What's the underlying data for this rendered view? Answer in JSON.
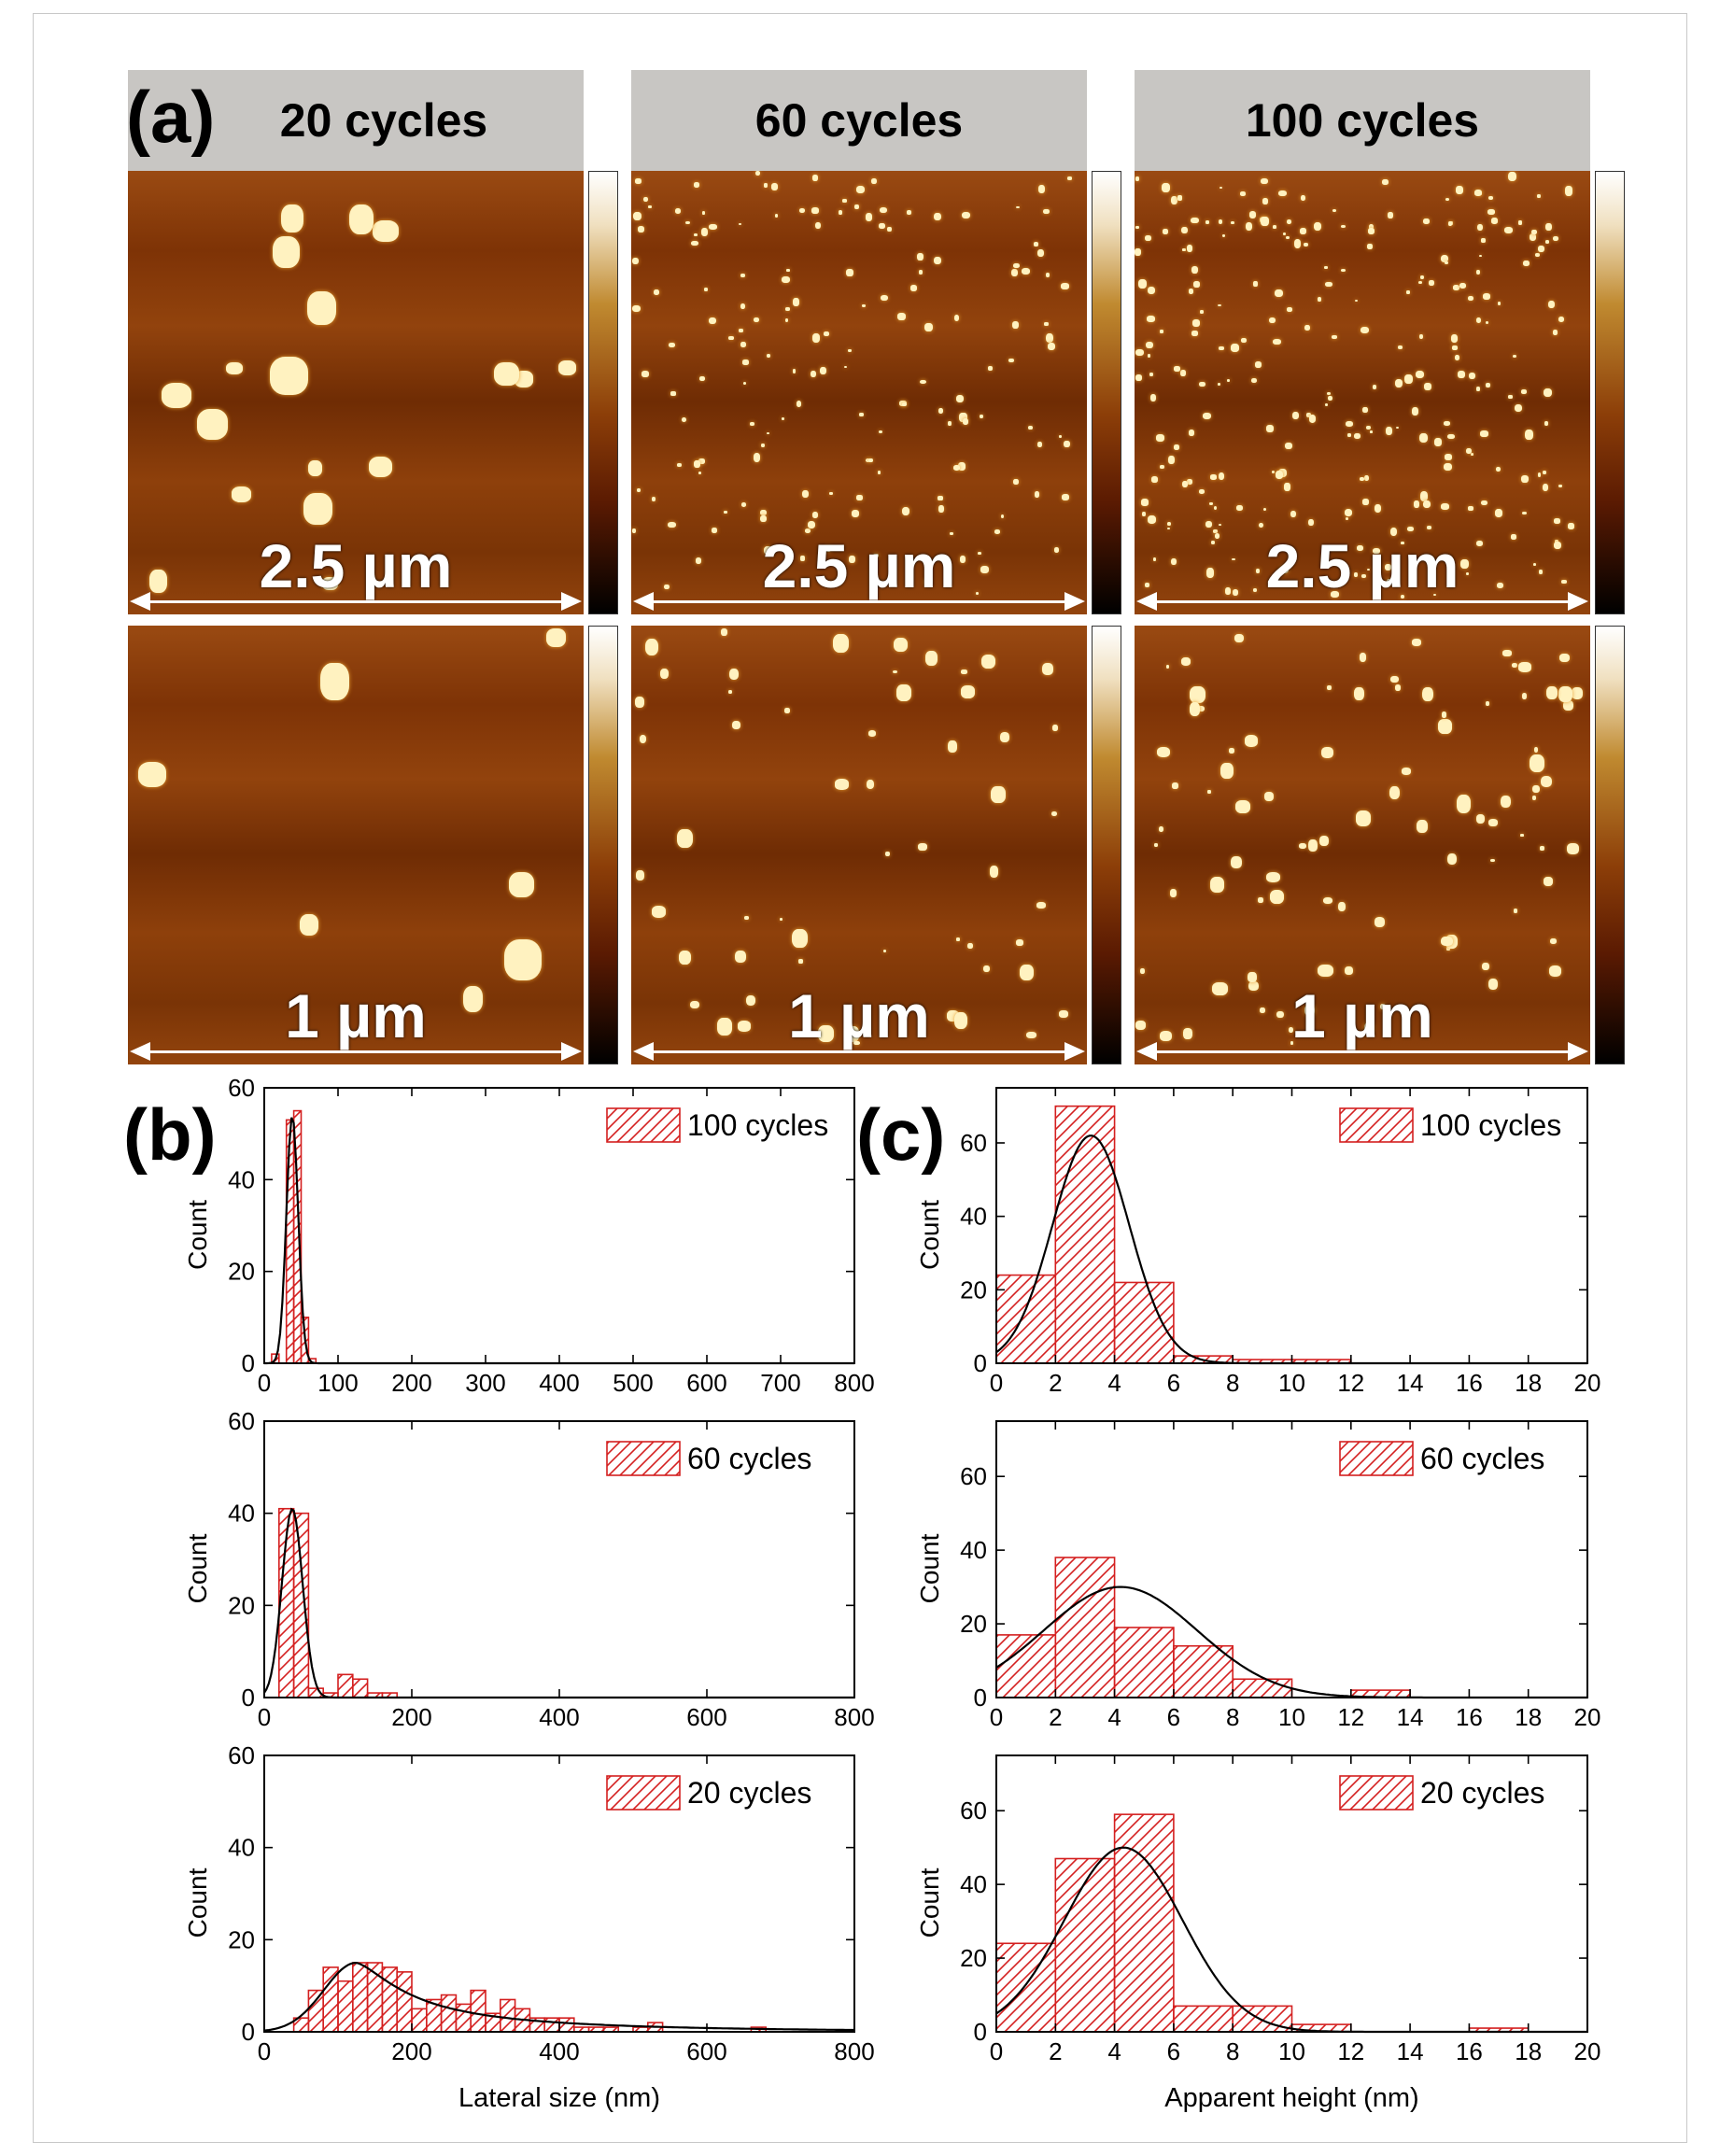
{
  "panel_labels": [
    "(a)",
    "(b)",
    "(c)"
  ],
  "afm": {
    "headers": [
      "20 cycles",
      "60 cycles",
      "100 cycles"
    ],
    "rows": [
      {
        "scale_label": "2.5 µm"
      },
      {
        "scale_label": "1 µm"
      }
    ],
    "colors": {
      "header_bg": "#c8c6c3",
      "image_bg": "#8a3a09",
      "particle": "#fff2c0"
    }
  },
  "colors": {
    "bar": "#d42020",
    "fit": "#000000"
  },
  "chart_data": [
    {
      "type": "bar",
      "panel": "b",
      "legend": "100 cycles",
      "xlim": [
        0,
        800
      ],
      "ylim": [
        0,
        60
      ],
      "xticks": [
        0,
        100,
        200,
        300,
        400,
        500,
        600,
        700,
        800
      ],
      "yticks": [
        0,
        20,
        40,
        60
      ],
      "ylabel": "Count",
      "xlabel": "",
      "binwidth": 10,
      "bins": [
        [
          10,
          2
        ],
        [
          20,
          0
        ],
        [
          30,
          53
        ],
        [
          40,
          55
        ],
        [
          50,
          10
        ],
        [
          60,
          1
        ]
      ],
      "fit": {
        "mu": 38,
        "sigma": 8,
        "peak": 54
      }
    },
    {
      "type": "bar",
      "panel": "b",
      "legend": "60 cycles",
      "xlim": [
        0,
        800
      ],
      "ylim": [
        0,
        60
      ],
      "xticks": [
        0,
        200,
        400,
        600,
        800
      ],
      "yticks": [
        0,
        20,
        40,
        60
      ],
      "ylabel": "Count",
      "xlabel": "",
      "binwidth": 20,
      "bins": [
        [
          20,
          41
        ],
        [
          40,
          40
        ],
        [
          60,
          2
        ],
        [
          80,
          1
        ],
        [
          100,
          5
        ],
        [
          120,
          4
        ],
        [
          140,
          1
        ],
        [
          160,
          1
        ]
      ],
      "fit": {
        "mu": 38,
        "sigma": 14,
        "peak": 41
      }
    },
    {
      "type": "bar",
      "panel": "b",
      "legend": "20 cycles",
      "xlim": [
        0,
        800
      ],
      "ylim": [
        0,
        60
      ],
      "xticks": [
        0,
        200,
        400,
        600,
        800
      ],
      "yticks": [
        0,
        20,
        40,
        60
      ],
      "ylabel": "Count",
      "xlabel": "Lateral size (nm)",
      "binwidth": 20,
      "bins": [
        [
          40,
          3
        ],
        [
          60,
          9
        ],
        [
          80,
          14
        ],
        [
          100,
          11
        ],
        [
          120,
          15
        ],
        [
          140,
          15
        ],
        [
          160,
          14
        ],
        [
          180,
          13
        ],
        [
          200,
          5
        ],
        [
          220,
          7
        ],
        [
          240,
          8
        ],
        [
          260,
          6
        ],
        [
          280,
          9
        ],
        [
          300,
          4
        ],
        [
          320,
          7
        ],
        [
          340,
          5
        ],
        [
          360,
          3
        ],
        [
          380,
          3
        ],
        [
          400,
          3
        ],
        [
          420,
          1
        ],
        [
          440,
          1
        ],
        [
          460,
          1
        ],
        [
          500,
          1
        ],
        [
          520,
          2
        ],
        [
          660,
          1
        ]
      ],
      "fit": {
        "mu": 125,
        "sigma": 55,
        "peak": 15,
        "tail": 120
      }
    },
    {
      "type": "bar",
      "panel": "c",
      "legend": "100 cycles",
      "xlim": [
        0,
        20
      ],
      "ylim": [
        0,
        75
      ],
      "xticks": [
        0,
        2,
        4,
        6,
        8,
        10,
        12,
        14,
        16,
        18,
        20
      ],
      "yticks": [
        0,
        20,
        40,
        60
      ],
      "ylabel": "Count",
      "xlabel": "",
      "binwidth": 2,
      "bins": [
        [
          0,
          24
        ],
        [
          2,
          70
        ],
        [
          4,
          22
        ],
        [
          6,
          2
        ],
        [
          8,
          1
        ],
        [
          10,
          1
        ]
      ],
      "fit": {
        "mu": 3.2,
        "sigma": 1.3,
        "peak": 62
      }
    },
    {
      "type": "bar",
      "panel": "c",
      "legend": "60 cycles",
      "xlim": [
        0,
        20
      ],
      "ylim": [
        0,
        75
      ],
      "xticks": [
        0,
        2,
        4,
        6,
        8,
        10,
        12,
        14,
        16,
        18,
        20
      ],
      "yticks": [
        0,
        20,
        40,
        60
      ],
      "ylabel": "Count",
      "xlabel": "",
      "binwidth": 2,
      "bins": [
        [
          0,
          17
        ],
        [
          2,
          38
        ],
        [
          4,
          19
        ],
        [
          6,
          14
        ],
        [
          8,
          5
        ],
        [
          12,
          2
        ]
      ],
      "fit": {
        "mu": 4.2,
        "sigma": 2.6,
        "peak": 30
      }
    },
    {
      "type": "bar",
      "panel": "c",
      "legend": "20 cycles",
      "xlim": [
        0,
        20
      ],
      "ylim": [
        0,
        75
      ],
      "xticks": [
        0,
        2,
        4,
        6,
        8,
        10,
        12,
        14,
        16,
        18,
        20
      ],
      "yticks": [
        0,
        20,
        40,
        60
      ],
      "ylabel": "Count",
      "xlabel": "Apparent height (nm)",
      "binwidth": 2,
      "bins": [
        [
          0,
          24
        ],
        [
          2,
          47
        ],
        [
          4,
          59
        ],
        [
          6,
          7
        ],
        [
          8,
          7
        ],
        [
          10,
          2
        ],
        [
          16,
          1
        ]
      ],
      "fit": {
        "mu": 4.3,
        "sigma": 2.0,
        "peak": 50
      }
    }
  ]
}
